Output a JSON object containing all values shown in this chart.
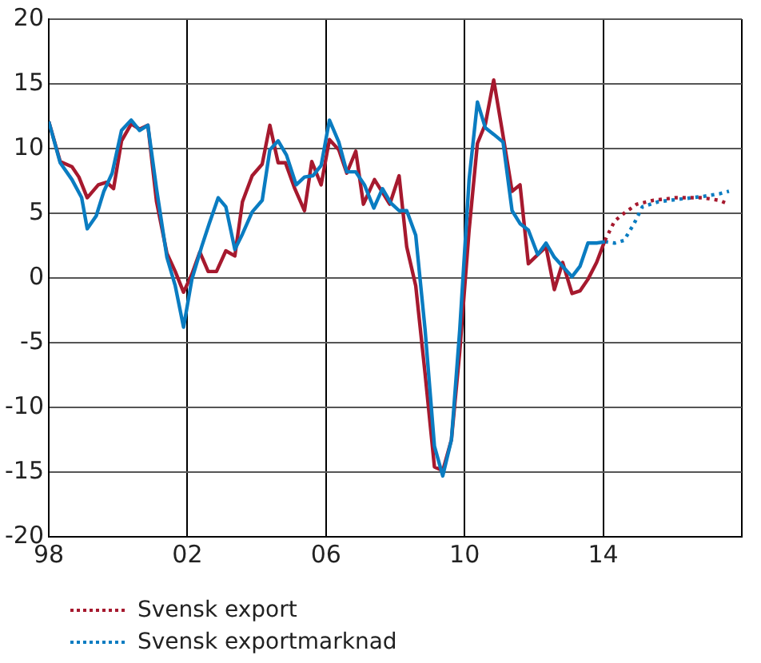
{
  "chart_data": {
    "type": "line",
    "xlim": [
      1998,
      2018
    ],
    "xticks": [
      {
        "value": 1998,
        "label": "98"
      },
      {
        "value": 2002,
        "label": "02"
      },
      {
        "value": 2006,
        "label": "06"
      },
      {
        "value": 2010,
        "label": "10"
      },
      {
        "value": 2014,
        "label": "14"
      },
      {
        "value": 2018,
        "label": null
      }
    ],
    "ylim": [
      -20,
      20
    ],
    "yticks": [
      -20,
      -15,
      -10,
      -5,
      0,
      5,
      10,
      15,
      20
    ],
    "grid": true,
    "legend": "bottom",
    "marker": "none",
    "series": [
      {
        "color": "#0a7cc1",
        "line_style": "solid",
        "x": [
          1998.0,
          1998.33,
          1998.67,
          1998.95,
          1999.11,
          1999.37,
          1999.59,
          1999.83,
          2000.1,
          2000.38,
          2000.62,
          2000.86,
          2001.11,
          2001.41,
          2001.65,
          2001.89,
          2002.13,
          2002.41,
          2002.63,
          2002.89,
          2003.11,
          2003.37,
          2003.59,
          2003.87,
          2004.16,
          2004.38,
          2004.62,
          2004.86,
          2005.14,
          2005.38,
          2005.62,
          2005.86,
          2006.1,
          2006.37,
          2006.6,
          2006.86,
          2007.11,
          2007.38,
          2007.63,
          2007.87,
          2008.11,
          2008.33,
          2008.59,
          2008.86,
          2009.13,
          2009.37,
          2009.62,
          2009.86,
          2010.13,
          2010.37,
          2010.6,
          2010.84,
          2011.11,
          2011.37,
          2011.6,
          2011.84,
          2012.11,
          2012.35,
          2012.59,
          2012.83,
          2013.1,
          2013.33,
          2013.56,
          2013.81,
          2014.05
        ],
        "values": [
          12.1,
          8.9,
          7.6,
          6.2,
          3.8,
          4.8,
          6.7,
          8.1,
          11.4,
          12.2,
          11.4,
          11.8,
          6.9,
          1.6,
          -0.6,
          -3.8,
          -0.1,
          2.4,
          4.2,
          6.2,
          5.5,
          2.2,
          3.4,
          5.1,
          6.0,
          9.9,
          10.6,
          9.5,
          7.2,
          7.8,
          7.9,
          8.7,
          12.2,
          10.5,
          8.2,
          8.2,
          7.2,
          5.4,
          6.9,
          5.8,
          5.2,
          5.2,
          3.3,
          -4.0,
          -13.0,
          -15.3,
          -12.5,
          -4.0,
          7.6,
          13.6,
          11.6,
          11.1,
          10.5,
          5.2,
          4.2,
          3.7,
          1.8,
          2.7,
          1.6,
          0.9,
          0.1,
          0.9,
          2.7,
          2.7,
          2.8
        ]
      },
      {
        "color": "#a6192e",
        "line_style": "solid",
        "x": [
          1998.0,
          1998.33,
          1998.67,
          1998.87,
          1999.11,
          1999.43,
          1999.67,
          1999.87,
          2000.1,
          2000.38,
          2000.62,
          2000.86,
          2001.11,
          2001.41,
          2001.65,
          2001.89,
          2002.13,
          2002.36,
          2002.6,
          2002.84,
          2003.11,
          2003.37,
          2003.59,
          2003.87,
          2004.16,
          2004.38,
          2004.62,
          2004.83,
          2005.1,
          2005.38,
          2005.59,
          2005.86,
          2006.1,
          2006.37,
          2006.6,
          2006.86,
          2007.08,
          2007.4,
          2007.68,
          2007.84,
          2008.11,
          2008.33,
          2008.59,
          2008.86,
          2009.13,
          2009.37,
          2009.62,
          2009.86,
          2010.13,
          2010.37,
          2010.6,
          2010.84,
          2011.11,
          2011.37,
          2011.6,
          2011.84,
          2012.11,
          2012.35,
          2012.59,
          2012.83,
          2013.1,
          2013.33,
          2013.56,
          2013.81,
          2014.05
        ],
        "values": [
          12.1,
          9.0,
          8.6,
          7.8,
          6.2,
          7.2,
          7.4,
          6.9,
          10.6,
          11.9,
          11.5,
          11.8,
          5.9,
          1.9,
          0.5,
          -1.1,
          0.3,
          2.0,
          0.5,
          0.5,
          2.1,
          1.7,
          5.9,
          7.9,
          8.8,
          11.8,
          8.9,
          8.9,
          6.9,
          5.2,
          9.0,
          7.2,
          10.7,
          9.9,
          8.1,
          9.8,
          5.7,
          7.6,
          6.4,
          5.7,
          7.9,
          2.4,
          -0.6,
          -7.4,
          -14.6,
          -14.9,
          -12.5,
          -5.7,
          3.7,
          10.4,
          11.9,
          15.3,
          11.0,
          6.7,
          7.2,
          1.1,
          1.8,
          2.4,
          -0.9,
          1.2,
          -1.2,
          -1.0,
          -0.1,
          1.2,
          2.9
        ]
      },
      {
        "name": "Svensk export",
        "color": "#a6192e",
        "line_style": "dotted",
        "x": [
          2014.05,
          2014.33,
          2014.6,
          2014.97,
          2015.44,
          2016.08,
          2016.87,
          2017.35,
          2017.63
        ],
        "values": [
          2.9,
          4.4,
          5.0,
          5.7,
          6.0,
          6.2,
          6.2,
          6.0,
          5.7
        ]
      },
      {
        "name": "Svensk exportmarknad",
        "color": "#0a7cc1",
        "line_style": "dotted",
        "x": [
          2014.05,
          2014.33,
          2014.6,
          2014.89,
          2015.13,
          2015.6,
          2016.24,
          2016.87,
          2017.35,
          2017.63
        ],
        "values": [
          2.8,
          2.7,
          2.9,
          4.2,
          5.5,
          5.9,
          6.1,
          6.3,
          6.5,
          6.7
        ]
      }
    ]
  }
}
